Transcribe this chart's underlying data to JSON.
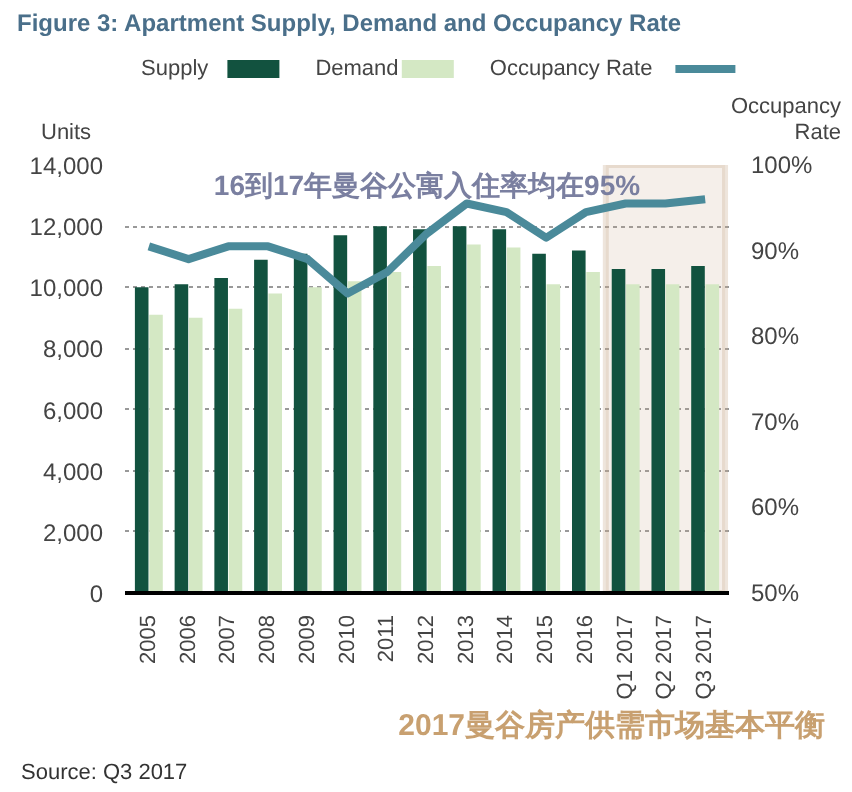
{
  "chart_data": {
    "type": "bar",
    "title": "Figure 3: Apartment Supply, Demand and Occupancy Rate",
    "ylabel": "Units",
    "y2label": "Occupancy Rate",
    "categories": [
      "2005",
      "2006",
      "2007",
      "2008",
      "2009",
      "2010",
      "2011",
      "2012",
      "2013",
      "2014",
      "2015",
      "2016",
      "Q1 2017",
      "Q2 2017",
      "Q3 2017"
    ],
    "series": [
      {
        "name": "Supply",
        "color": "#12523f",
        "values": [
          10000,
          10100,
          10300,
          10900,
          11100,
          11700,
          12000,
          11900,
          12000,
          11900,
          11100,
          11200,
          10600,
          10600,
          10700
        ]
      },
      {
        "name": "Demand",
        "color": "#d4e8c4",
        "values": [
          9100,
          9000,
          9300,
          9800,
          10000,
          10200,
          10500,
          10700,
          11400,
          11300,
          10100,
          10500,
          10100,
          10100,
          10100
        ]
      },
      {
        "name": "Occupancy Rate",
        "type": "line",
        "axis": "y2",
        "color": "#4a8a9a",
        "values": [
          90.5,
          89,
          90.5,
          90.5,
          89,
          85,
          87.5,
          92,
          95.5,
          94.5,
          91.5,
          94.5,
          95.5,
          95.5,
          96
        ]
      }
    ],
    "ylim": [
      0,
      14000
    ],
    "yticks": [
      {
        "value": 0,
        "label": "0"
      },
      {
        "value": 2000,
        "label": "2,000"
      },
      {
        "value": 4000,
        "label": "4,000"
      },
      {
        "value": 6000,
        "label": "6,000"
      },
      {
        "value": 8000,
        "label": "8,000"
      },
      {
        "value": 10000,
        "label": "10,000"
      },
      {
        "value": 12000,
        "label": "12,000"
      },
      {
        "value": 14000,
        "label": "14,000"
      }
    ],
    "y2lim": [
      50,
      100
    ],
    "y2ticks": [
      {
        "value": 50,
        "label": "50%"
      },
      {
        "value": 60,
        "label": "60%"
      },
      {
        "value": 70,
        "label": "70%"
      },
      {
        "value": 80,
        "label": "80%"
      },
      {
        "value": 90,
        "label": "90%"
      },
      {
        "value": 100,
        "label": "100%"
      }
    ],
    "bands": [
      {
        "axis": "x",
        "from": "Q1 2017",
        "to": "Q3 2017",
        "color": "#c8a88a"
      }
    ],
    "annotations": [
      "16到17年曼谷公寓入住率均在95%",
      "2017曼谷房产供需市场基本平衡",
      "Source: Q3 2017"
    ],
    "grid": "y",
    "legend": "top",
    "line_style": "solid",
    "marker": "none"
  }
}
